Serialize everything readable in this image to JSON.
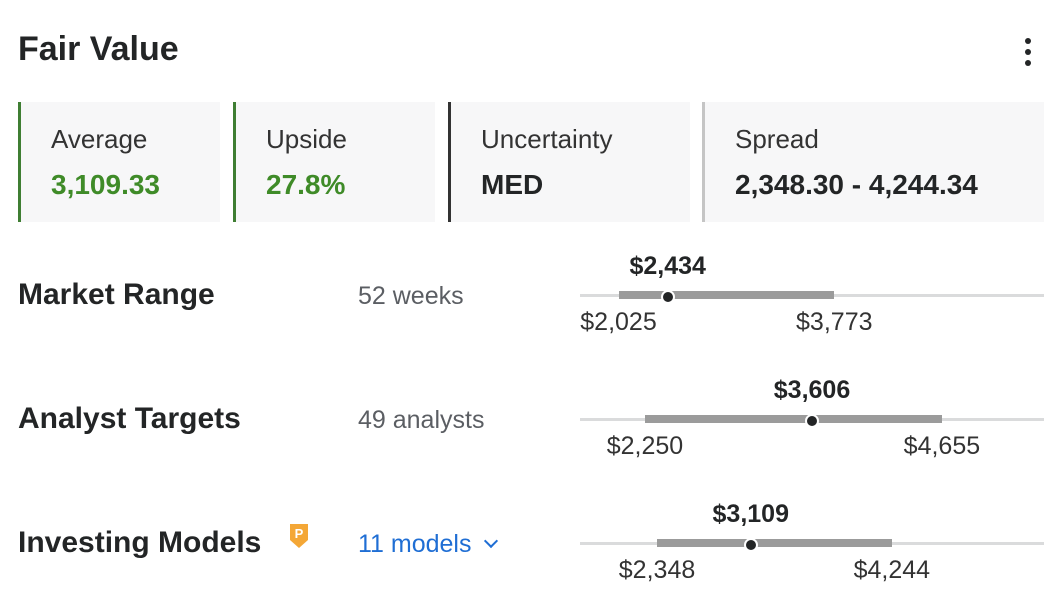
{
  "header": {
    "title": "Fair Value"
  },
  "cards": [
    {
      "label": "Average",
      "value": "3,109.33"
    },
    {
      "label": "Upside",
      "value": "27.8%"
    },
    {
      "label": "Uncertainty",
      "value": "MED"
    },
    {
      "label": "Spread",
      "value": "2,348.30 - 4,244.34"
    }
  ],
  "rows": [
    {
      "label": "Market Range",
      "sub": "52 weeks",
      "current": "$2,434",
      "low": "$2,025",
      "high": "$3,773",
      "scale": {
        "bar_start": 0.083,
        "bar_end": 0.548,
        "dot": 0.189
      }
    },
    {
      "label": "Analyst Targets",
      "sub": "49 analysts",
      "current": "$3,606",
      "low": "$2,250",
      "high": "$4,655",
      "scale": {
        "bar_start": 0.14,
        "bar_end": 0.78,
        "dot": 0.5
      }
    },
    {
      "label": "Investing Models",
      "sub": "11 models",
      "current": "$3,109",
      "low": "$2,348",
      "high": "$4,244",
      "scale": {
        "bar_start": 0.166,
        "bar_end": 0.672,
        "dot": 0.368
      }
    }
  ],
  "colors": {
    "positive": "#3f8b28",
    "link": "#1f6ed4",
    "bar": "#9b9b9b",
    "track": "#dadbdc"
  },
  "icons": {
    "menu": "more-vertical-icon",
    "pro": "pro-p-badge-icon",
    "dropdown": "chevron-down-icon"
  }
}
